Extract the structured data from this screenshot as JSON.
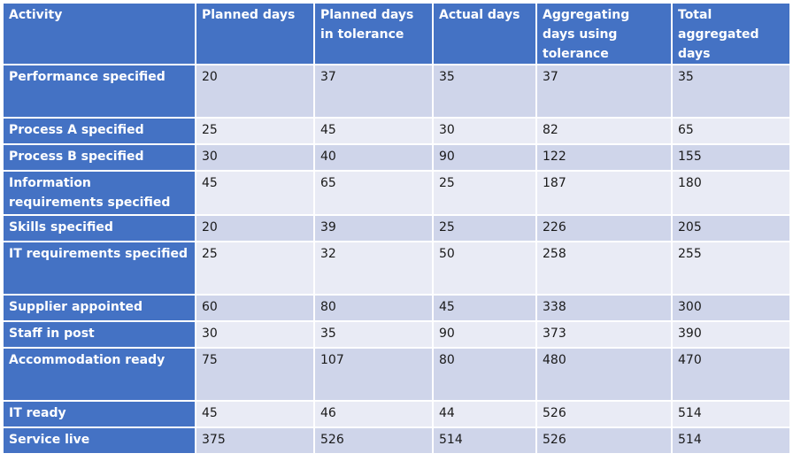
{
  "chart_data": {
    "type": "table",
    "columns": [
      "Activity",
      "Planned days",
      "Planned days in tolerance",
      "Actual days",
      "Aggregating days using tolerance",
      "Total aggregated days"
    ],
    "rows": [
      {
        "activity": "Performance specified",
        "values": [
          "20",
          "37",
          "35",
          "37",
          "35"
        ]
      },
      {
        "activity": "Process A specified",
        "values": [
          "25",
          "45",
          "30",
          "82",
          "65"
        ]
      },
      {
        "activity": "Process B specified",
        "values": [
          "30",
          "40",
          "90",
          "122",
          "155"
        ]
      },
      {
        "activity": "Information requirements specified",
        "values": [
          "45",
          "65",
          "25",
          "187",
          "180"
        ]
      },
      {
        "activity": "Skills specified",
        "values": [
          "20",
          "39",
          "25",
          "226",
          "205"
        ]
      },
      {
        "activity": "IT requirements specified",
        "values": [
          "25",
          "32",
          "50",
          "258",
          "255"
        ]
      },
      {
        "activity": "Supplier appointed",
        "values": [
          "60",
          "80",
          "45",
          "338",
          "300"
        ]
      },
      {
        "activity": "Staff in post",
        "values": [
          "30",
          "35",
          "90",
          "373",
          "390"
        ]
      },
      {
        "activity": "Accommodation ready",
        "values": [
          "75",
          "107",
          "80",
          "480",
          "470"
        ]
      },
      {
        "activity": "IT ready",
        "values": [
          "45",
          "46",
          "44",
          "526",
          "514"
        ]
      },
      {
        "activity": "Service live",
        "values": [
          "375",
          "526",
          "514",
          "526",
          "514"
        ]
      }
    ]
  },
  "colors": {
    "header": "#4472c4",
    "row_dark": "#cfd5ea",
    "row_light": "#e9ebf5",
    "header_text": "#ffffff"
  }
}
